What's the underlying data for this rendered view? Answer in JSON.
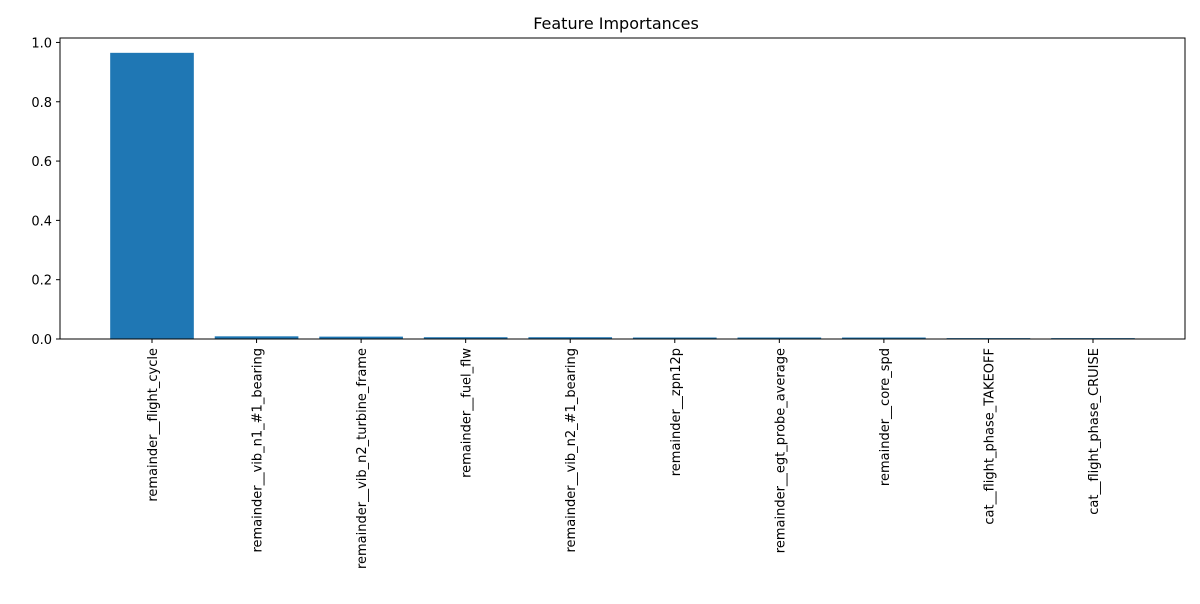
{
  "chart_data": {
    "type": "bar",
    "title": "Feature Importances",
    "xlabel": "",
    "ylabel": "",
    "categories": [
      "remainder__flight_cycle",
      "remainder__vib_n1_#1_bearing",
      "remainder__vib_n2_turbine_frame",
      "remainder__fuel_flw",
      "remainder__vib_n2_#1_bearing",
      "remainder__zpn12p",
      "remainder__egt_probe_average",
      "remainder__core_spd",
      "cat__flight_phase_TAKEOFF",
      "cat__flight_phase_CRUISE"
    ],
    "values": [
      0.965,
      0.009,
      0.008,
      0.006,
      0.006,
      0.005,
      0.005,
      0.005,
      0.003,
      0.003
    ],
    "ylim": [
      0,
      1.015
    ],
    "yticks": [
      0.0,
      0.2,
      0.4,
      0.6,
      0.8,
      1.0
    ],
    "ytick_labels": [
      "0.0",
      "0.2",
      "0.4",
      "0.6",
      "0.8",
      "1.0"
    ],
    "grid": false,
    "legend": "none",
    "bar_color": "#1f77b4",
    "tick_label_rotation": "vertical"
  }
}
